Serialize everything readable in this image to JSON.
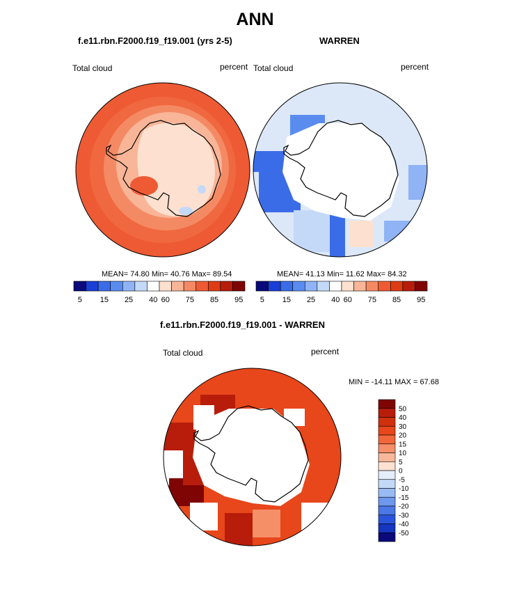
{
  "title": "ANN",
  "panels": [
    {
      "title": "f.e11.rbn.F2000.f19_f19.001 (yrs 2-5)",
      "left_label": "Total cloud",
      "right_label": "percent",
      "stats": "MEAN=  74.80  Min=  40.76  Max=  89.54",
      "colorbar_ticks": [
        "5",
        "15",
        "25",
        "40",
        "60",
        "75",
        "85",
        "95"
      ]
    },
    {
      "title": "WARREN",
      "left_label": "Total cloud",
      "right_label": "percent",
      "stats": "MEAN=  41.13  Min=  11.62  Max=  84.32",
      "colorbar_ticks": [
        "5",
        "15",
        "25",
        "40",
        "60",
        "75",
        "85",
        "95"
      ]
    },
    {
      "title": "f.e11.rbn.F2000.f19_f19.001 - WARREN",
      "left_label": "Total cloud",
      "right_label": "percent",
      "stats": "MIN = -14.11 MAX =  67.68",
      "colorbar_ticks": [
        "50",
        "40",
        "30",
        "20",
        "15",
        "10",
        "5",
        "0",
        "-5",
        "-10",
        "-15",
        "-20",
        "-30",
        "-40",
        "-50"
      ]
    }
  ],
  "colors": {
    "cloud_scale": [
      "#0a0a7a",
      "#1a3fd6",
      "#3b6ce8",
      "#5a8cf0",
      "#8fb3f5",
      "#c4d9f8",
      "#ffffff",
      "#fde0cf",
      "#f8b598",
      "#f48a64",
      "#ee5a34",
      "#de3c14",
      "#b71d0a",
      "#7f0505"
    ],
    "diff_scale": [
      "#7f0505",
      "#b71d0a",
      "#d1300c",
      "#e8461b",
      "#f2663a",
      "#f58f67",
      "#f9b79a",
      "#fde2d2",
      "#e4eefb",
      "#c4d9f8",
      "#99bbf4",
      "#6e98ee",
      "#4a78e6",
      "#2a55db",
      "#1436c0",
      "#0a0a7a"
    ],
    "coastline": "#000000"
  }
}
